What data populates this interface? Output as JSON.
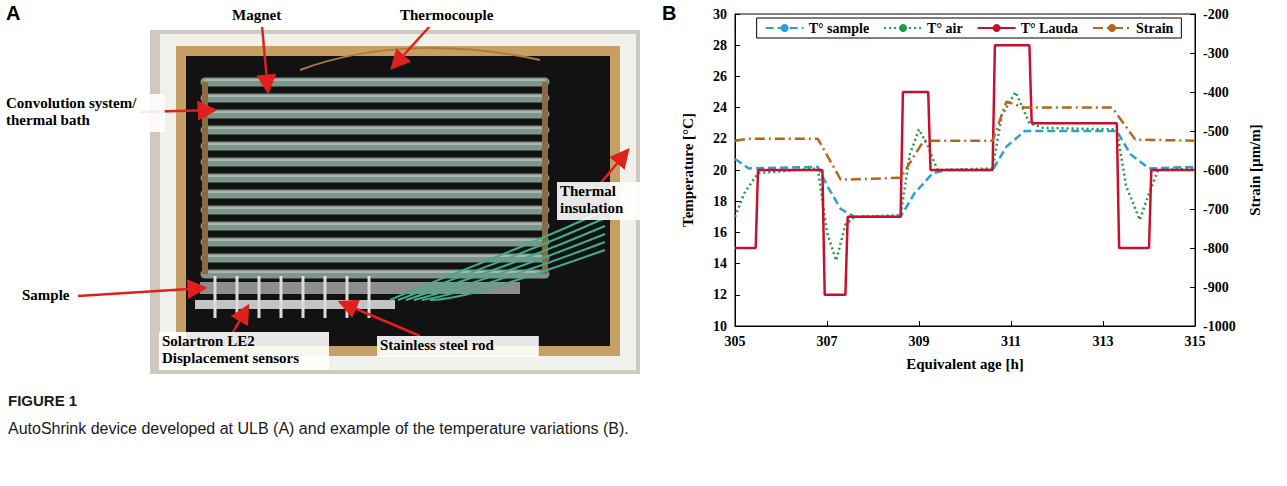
{
  "panel_letters": [
    "A",
    "B"
  ],
  "photo_panel": {
    "labels": [
      "Magnet",
      "Thermocouple",
      "Convolution system/thermal bath",
      "Thermal insulation",
      "Sample",
      "Solartron LE2 Displacement sensors",
      "Stainless steel rod"
    ]
  },
  "figure_label": "FIGURE 1",
  "caption": "AutoShrink device developed at ULB (A) and example of the temperature variations (B).",
  "chart_data": {
    "type": "line",
    "x_label": "Equivalent age [h]",
    "y_label": "Temperature [°C]",
    "y2_label": "Strain [µm/m]",
    "xlim": [
      305,
      315
    ],
    "xticks": [
      305,
      307,
      309,
      311,
      313,
      315
    ],
    "ylim": [
      10,
      30
    ],
    "yticks": [
      10,
      12,
      14,
      16,
      18,
      20,
      22,
      24,
      26,
      28,
      30
    ],
    "y2lim": [
      -1000,
      -200
    ],
    "y2ticks": [
      -1000,
      -900,
      -800,
      -700,
      -600,
      -500,
      -400,
      -300,
      -200
    ],
    "grid": false,
    "legend": "top",
    "series": [
      {
        "name": "T° sample",
        "color": "#2b9fd8",
        "line_style": "dashed",
        "x": [
          305,
          305.3,
          306.8,
          307.0,
          307.3,
          307.6,
          308.6,
          308.9,
          309.3,
          309.6,
          310.6,
          310.9,
          311.3,
          313.3,
          313.6,
          314.0,
          315
        ],
        "values": [
          20.7,
          20.1,
          20.2,
          19.0,
          17.5,
          17.0,
          17.0,
          18.5,
          19.8,
          20.0,
          20.0,
          21.5,
          22.5,
          22.5,
          21.0,
          20.1,
          20.2
        ]
      },
      {
        "name": "T° air",
        "color": "#1e9b4a",
        "line_style": "dotted",
        "x": [
          305,
          305.2,
          305.5,
          306.8,
          307.0,
          307.2,
          307.4,
          307.6,
          308.6,
          308.8,
          309.0,
          309.2,
          309.4,
          310.6,
          310.8,
          311.1,
          311.4,
          311.7,
          313.3,
          313.5,
          313.8,
          314.0,
          314.2,
          315
        ],
        "values": [
          17.0,
          18.5,
          19.8,
          20.1,
          16.0,
          14.2,
          16.5,
          17.0,
          17.1,
          21.0,
          22.6,
          21.5,
          20.0,
          20.1,
          23.5,
          25.0,
          23.0,
          22.7,
          22.6,
          19.0,
          16.8,
          18.5,
          20.0,
          20.1
        ]
      },
      {
        "name": "T° Lauda",
        "color": "#c8102e",
        "line_style": "solid",
        "x": [
          305,
          305.45,
          305.5,
          306.9,
          306.95,
          307.4,
          307.45,
          308.6,
          308.65,
          309.2,
          309.25,
          310.6,
          310.65,
          311.4,
          311.45,
          313.3,
          313.35,
          314.0,
          314.05,
          315
        ],
        "values": [
          15,
          15,
          20,
          20,
          12,
          12,
          17,
          17,
          25,
          25,
          20,
          20,
          28,
          28,
          23,
          23,
          15,
          15,
          20,
          20
        ]
      },
      {
        "name": "Strain",
        "color": "#b8651c",
        "line_style": "dashdot",
        "axis": "y2",
        "x": [
          305,
          305.3,
          306.8,
          307.3,
          308.6,
          309.1,
          310.6,
          310.9,
          311.3,
          313.2,
          313.7,
          315
        ],
        "values": [
          -525,
          -520,
          -520,
          -625,
          -620,
          -525,
          -525,
          -425,
          -440,
          -440,
          -522,
          -525
        ]
      }
    ]
  }
}
